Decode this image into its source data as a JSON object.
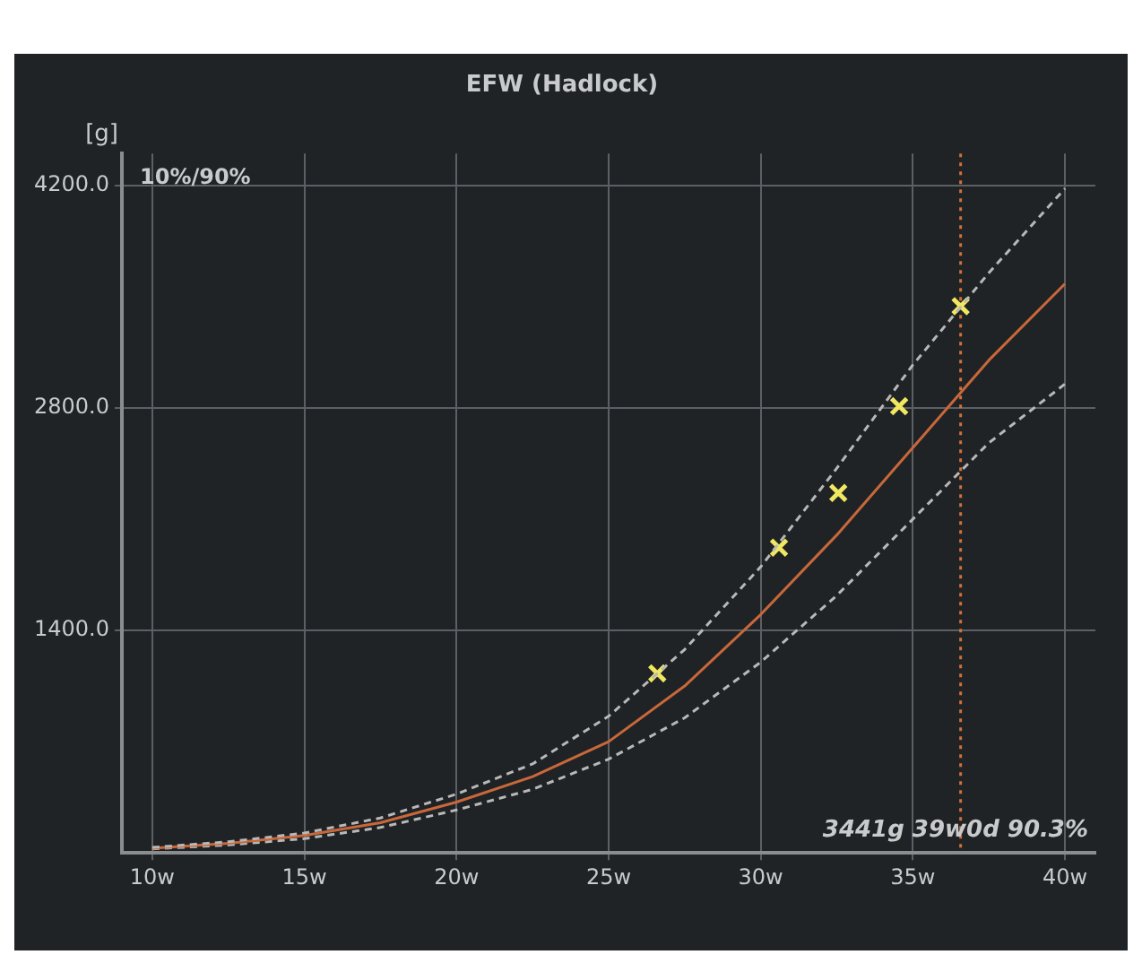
{
  "chart_data": {
    "type": "line",
    "title": "EFW (Hadlock)",
    "ylabel": "[g]",
    "annotations": [
      "10%/90%",
      "3441g 39w0d 90.3%"
    ],
    "x": [
      10,
      12.5,
      15,
      17.5,
      20,
      22.5,
      25,
      27.5,
      30,
      32.5,
      35,
      37.5,
      40
    ],
    "series": [
      {
        "color": "#b8b8b8",
        "line_style": "dashed",
        "marker": "none",
        "values": [
          35,
          70,
          125,
          220,
          370,
          560,
          860,
          1280,
          1800,
          2420,
          3070,
          3650,
          4180
        ]
      },
      {
        "color": "#c8683a",
        "line_style": "solid",
        "marker": "none",
        "values": [
          30,
          60,
          110,
          190,
          320,
          480,
          700,
          1050,
          1500,
          2000,
          2550,
          3100,
          3580
        ]
      },
      {
        "color": "#b8b8b8",
        "line_style": "dashed",
        "marker": "none",
        "values": [
          25,
          50,
          90,
          160,
          270,
          400,
          590,
          850,
          1200,
          1620,
          2100,
          2580,
          2950
        ]
      },
      {
        "type": "scatter",
        "color": "#f0e860",
        "marker": "cross",
        "x": [
          26.6,
          30.6,
          32.55,
          34.55,
          36.57
        ],
        "values": [
          1130,
          1920,
          2265,
          2810,
          3440
        ]
      }
    ],
    "xlim": [
      9,
      41
    ],
    "xticks": [
      {
        "value": 10,
        "label": "10w"
      },
      {
        "value": 15,
        "label": "15w"
      },
      {
        "value": 20,
        "label": "20w"
      },
      {
        "value": 25,
        "label": "25w"
      },
      {
        "value": 30,
        "label": "30w"
      },
      {
        "value": 35,
        "label": "35w"
      },
      {
        "value": 40,
        "label": "40w"
      }
    ],
    "ylim": [
      0,
      4400
    ],
    "yticks": [
      {
        "value": 1400,
        "label": "1400.0"
      },
      {
        "value": 2800,
        "label": "2800.0"
      },
      {
        "value": 4200,
        "label": "4200.0"
      }
    ],
    "ref_lines": [
      {
        "axis": "x",
        "value": 36.57,
        "color": "#d0703a",
        "line_style": "dotted"
      }
    ],
    "grid": true,
    "legend": false
  }
}
